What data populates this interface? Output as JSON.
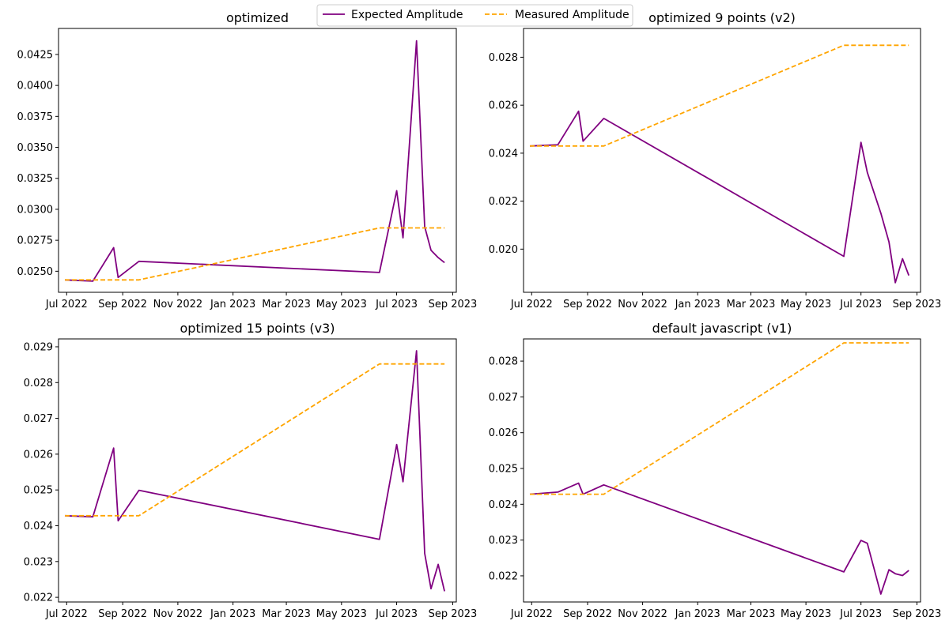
{
  "legend": {
    "placement": "top-center",
    "entries": [
      {
        "label": "Expected Amplitude",
        "color": "#800080",
        "style": "solid"
      },
      {
        "label": "Measured Amplitude",
        "color": "#FFA500",
        "style": "dashed"
      }
    ]
  },
  "chart_data": [
    {
      "type": "line",
      "title": "optimized",
      "xlabel": "",
      "ylabel": "",
      "grid": false,
      "x_ticks": [
        "2022-07-01",
        "2022-09-01",
        "2022-11-01",
        "2023-01-01",
        "2023-03-01",
        "2023-05-01",
        "2023-07-01",
        "2023-09-01"
      ],
      "x_tick_labels": [
        "Jul 2022",
        "Sep 2022",
        "Nov 2022",
        "Jan 2023",
        "Mar 2023",
        "May 2023",
        "Jul 2023",
        "Sep 2023"
      ],
      "xlim": [
        "2022-06-22",
        "2023-09-05"
      ],
      "ylim": [
        0.0233,
        0.0446
      ],
      "y_ticks": [
        0.025,
        0.0275,
        0.03,
        0.0325,
        0.035,
        0.0375,
        0.04,
        0.0425
      ],
      "y_tick_labels": [
        "0.0250",
        "0.0275",
        "0.0300",
        "0.0325",
        "0.0350",
        "0.0375",
        "0.0400",
        "0.0425"
      ],
      "series": [
        {
          "name": "Expected Amplitude",
          "x": [
            "2022-06-29",
            "2022-07-30",
            "2022-08-22",
            "2022-08-27",
            "2022-09-19",
            "2023-06-12",
            "2023-07-01",
            "2023-07-08",
            "2023-07-23",
            "2023-08-01",
            "2023-08-08",
            "2023-08-16",
            "2023-08-23"
          ],
          "y": [
            0.0243,
            0.0242,
            0.0269,
            0.0245,
            0.0258,
            0.0249,
            0.0315,
            0.0277,
            0.0436,
            0.0286,
            0.0267,
            0.0261,
            0.0257
          ]
        },
        {
          "name": "Measured Amplitude",
          "x": [
            "2022-06-29",
            "2022-09-19",
            "2023-06-12",
            "2023-08-23"
          ],
          "y": [
            0.0243,
            0.0243,
            0.0285,
            0.0285
          ]
        }
      ]
    },
    {
      "type": "line",
      "title": "optimized 9 points (v2)",
      "xlabel": "",
      "ylabel": "",
      "grid": false,
      "x_ticks": [
        "2022-07-01",
        "2022-09-01",
        "2022-11-01",
        "2023-01-01",
        "2023-03-01",
        "2023-05-01",
        "2023-07-01",
        "2023-09-01"
      ],
      "x_tick_labels": [
        "Jul 2022",
        "Sep 2022",
        "Nov 2022",
        "Jan 2023",
        "Mar 2023",
        "May 2023",
        "Jul 2023",
        "Sep 2023"
      ],
      "xlim": [
        "2022-06-22",
        "2023-09-05"
      ],
      "ylim": [
        0.0182,
        0.0292
      ],
      "y_ticks": [
        0.02,
        0.022,
        0.024,
        0.026,
        0.028
      ],
      "y_tick_labels": [
        "0.020",
        "0.022",
        "0.024",
        "0.026",
        "0.028"
      ],
      "series": [
        {
          "name": "Expected Amplitude",
          "x": [
            "2022-06-29",
            "2022-07-30",
            "2022-08-22",
            "2022-08-27",
            "2022-09-19",
            "2023-06-12",
            "2023-07-01",
            "2023-07-08",
            "2023-07-23",
            "2023-08-01",
            "2023-08-08",
            "2023-08-16",
            "2023-08-23"
          ],
          "y": [
            0.0243,
            0.02435,
            0.02575,
            0.0245,
            0.02545,
            0.0197,
            0.02445,
            0.0232,
            0.0215,
            0.0203,
            0.0186,
            0.0196,
            0.0189
          ]
        },
        {
          "name": "Measured Amplitude",
          "x": [
            "2022-06-29",
            "2022-09-19",
            "2023-06-12",
            "2023-08-23"
          ],
          "y": [
            0.0243,
            0.0243,
            0.0285,
            0.0285
          ]
        }
      ]
    },
    {
      "type": "line",
      "title": "optimized 15 points (v3)",
      "xlabel": "",
      "ylabel": "",
      "grid": false,
      "x_ticks": [
        "2022-07-01",
        "2022-09-01",
        "2022-11-01",
        "2023-01-01",
        "2023-03-01",
        "2023-05-01",
        "2023-07-01",
        "2023-09-01"
      ],
      "x_tick_labels": [
        "Jul 2022",
        "Sep 2022",
        "Nov 2022",
        "Jan 2023",
        "Mar 2023",
        "May 2023",
        "Jul 2023",
        "Sep 2023"
      ],
      "xlim": [
        "2022-06-22",
        "2023-09-05"
      ],
      "ylim": [
        0.02187,
        0.02922
      ],
      "y_ticks": [
        0.022,
        0.023,
        0.024,
        0.025,
        0.026,
        0.027,
        0.028,
        0.029
      ],
      "y_tick_labels": [
        "0.022",
        "0.023",
        "0.024",
        "0.025",
        "0.026",
        "0.027",
        "0.028",
        "0.029"
      ],
      "series": [
        {
          "name": "Expected Amplitude",
          "x": [
            "2022-06-29",
            "2022-07-30",
            "2022-08-22",
            "2022-08-27",
            "2022-09-19",
            "2023-06-12",
            "2023-07-01",
            "2023-07-08",
            "2023-07-23",
            "2023-08-01",
            "2023-08-08",
            "2023-08-16",
            "2023-08-23"
          ],
          "y": [
            0.02428,
            0.02425,
            0.02617,
            0.02414,
            0.02499,
            0.02362,
            0.02627,
            0.02523,
            0.02889,
            0.02323,
            0.02224,
            0.02292,
            0.02217
          ]
        },
        {
          "name": "Measured Amplitude",
          "x": [
            "2022-06-29",
            "2022-09-19",
            "2023-06-12",
            "2023-08-23"
          ],
          "y": [
            0.02428,
            0.02428,
            0.02852,
            0.02852
          ]
        }
      ]
    },
    {
      "type": "line",
      "title": "default javascript (v1)",
      "xlabel": "",
      "ylabel": "",
      "grid": false,
      "x_ticks": [
        "2022-07-01",
        "2022-09-01",
        "2022-11-01",
        "2023-01-01",
        "2023-03-01",
        "2023-05-01",
        "2023-07-01",
        "2023-09-01"
      ],
      "x_tick_labels": [
        "Jul 2022",
        "Sep 2022",
        "Nov 2022",
        "Jan 2023",
        "Mar 2023",
        "May 2023",
        "Jul 2023",
        "Sep 2023"
      ],
      "xlim": [
        "2022-06-22",
        "2023-09-05"
      ],
      "ylim": [
        0.02127,
        0.02862
      ],
      "y_ticks": [
        0.022,
        0.023,
        0.024,
        0.025,
        0.026,
        0.027,
        0.028
      ],
      "y_tick_labels": [
        "0.022",
        "0.023",
        "0.024",
        "0.025",
        "0.026",
        "0.027",
        "0.028"
      ],
      "series": [
        {
          "name": "Expected Amplitude",
          "x": [
            "2022-06-29",
            "2022-07-30",
            "2022-08-22",
            "2022-08-27",
            "2022-09-19",
            "2023-06-12",
            "2023-07-01",
            "2023-07-08",
            "2023-07-23",
            "2023-08-01",
            "2023-08-08",
            "2023-08-16",
            "2023-08-23"
          ],
          "y": [
            0.02428,
            0.02434,
            0.02459,
            0.02428,
            0.02454,
            0.02211,
            0.02299,
            0.02291,
            0.02149,
            0.02217,
            0.02206,
            0.02201,
            0.02215
          ]
        },
        {
          "name": "Measured Amplitude",
          "x": [
            "2022-06-29",
            "2022-09-19",
            "2023-06-12",
            "2023-08-23"
          ],
          "y": [
            0.02428,
            0.02428,
            0.02851,
            0.02851
          ]
        }
      ]
    }
  ]
}
